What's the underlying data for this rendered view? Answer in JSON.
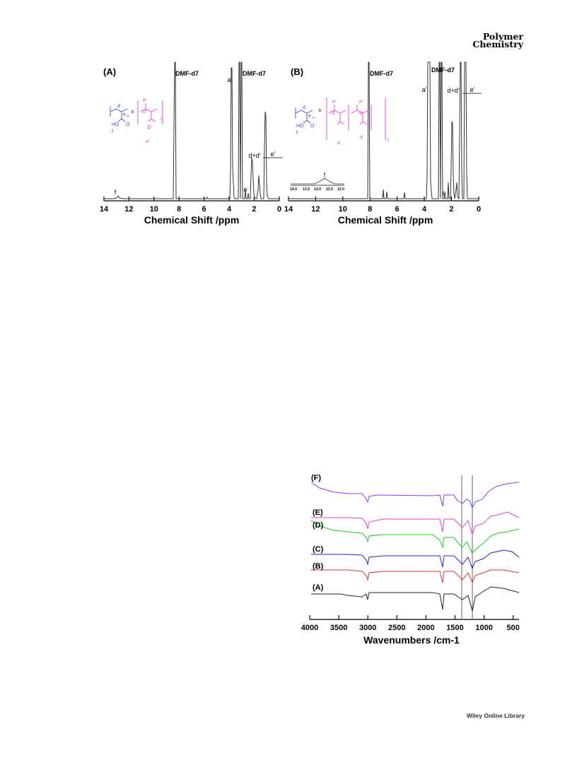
{
  "header": {
    "journal_line1": "Polymer",
    "journal_line2": "Chemistry"
  },
  "footer": {
    "text": "Wiley Online Library"
  },
  "panels": {
    "a": {
      "label": "(A)",
      "solvent1": "DMF-d7",
      "solvent2": "DMF-d7",
      "peaks": {
        "f": "f",
        "a_prime": "a'",
        "e": "e",
        "dd": "d+d'",
        "e_prime": "e'"
      },
      "struct": {
        "d": "d",
        "e": "e",
        "b": "b",
        "n": "n",
        "ho": "HO",
        "o": "O",
        "f": "f",
        "e_p": "e'",
        "d_p": "d'",
        "o2": "O",
        "a_p": "a'",
        "sub2": "2"
      }
    },
    "b": {
      "label": "(B)",
      "solvent1": "DMF-d7",
      "solvent2": "DMF-d7",
      "peaks": {
        "a_prime": "a'",
        "e": "e",
        "dd": "d+d'",
        "e_prime": "e'"
      },
      "struct": {
        "d": "d",
        "e": "e",
        "b": "b",
        "n": "n",
        "ho": "HO",
        "o": "O",
        "f": "f",
        "e_p": "e'",
        "d_p": "d'",
        "a_p": "a'",
        "sub2": "2"
      },
      "inset": {
        "peak": "f",
        "ticks": [
          "14.0",
          "13.5",
          "13.0",
          "12.5",
          "12.0"
        ]
      }
    },
    "c": {
      "labels": [
        "(F)",
        "(E)",
        "(D)",
        "(C)",
        "(B)",
        "(A)"
      ]
    }
  },
  "chart_data": [
    {
      "type": "line",
      "title": "(A)",
      "xlabel": "Chemical Shift /ppm",
      "xlim": [
        14,
        0
      ],
      "x_reversed": true,
      "x_ticks": [
        "14",
        "12",
        "10",
        "8",
        "6",
        "4",
        "2",
        "0"
      ],
      "series": [
        {
          "peaks_ppm": [
            12.8,
            8.03,
            5.3,
            3.6,
            2.93,
            2.75,
            2.45,
            1.95,
            1.2,
            0.95,
            0.85
          ]
        }
      ]
    },
    {
      "type": "line",
      "title": "(B)",
      "xlabel": "Chemical Shift /ppm",
      "xlim": [
        14,
        0
      ],
      "x_reversed": true,
      "x_ticks": [
        "14",
        "12",
        "10",
        "8",
        "6",
        "4",
        "2",
        "0"
      ],
      "series": [
        {
          "peaks_ppm": [
            8.03,
            7.0,
            6.7,
            5.3,
            3.6,
            2.93,
            2.75,
            2.4,
            1.95,
            1.2,
            0.9
          ]
        }
      ]
    },
    {
      "type": "line",
      "xlabel": "Wavenumbers /cm-1",
      "xlim": [
        4000,
        400
      ],
      "x_reversed": true,
      "x_ticks": [
        "4000",
        "3500",
        "3000",
        "2500",
        "2000",
        "1500",
        "1000",
        "500"
      ],
      "series": [
        {
          "name": "(F)",
          "color": "#8a3df0"
        },
        {
          "name": "(E)",
          "color": "#e040e0"
        },
        {
          "name": "(D)",
          "color": "#22cc22"
        },
        {
          "name": "(C)",
          "color": "#2222cc"
        },
        {
          "name": "(B)",
          "color": "#dd3333"
        },
        {
          "name": "(A)",
          "color": "#222222"
        }
      ],
      "reference_lines_cm1": [
        1380,
        1210
      ]
    }
  ]
}
